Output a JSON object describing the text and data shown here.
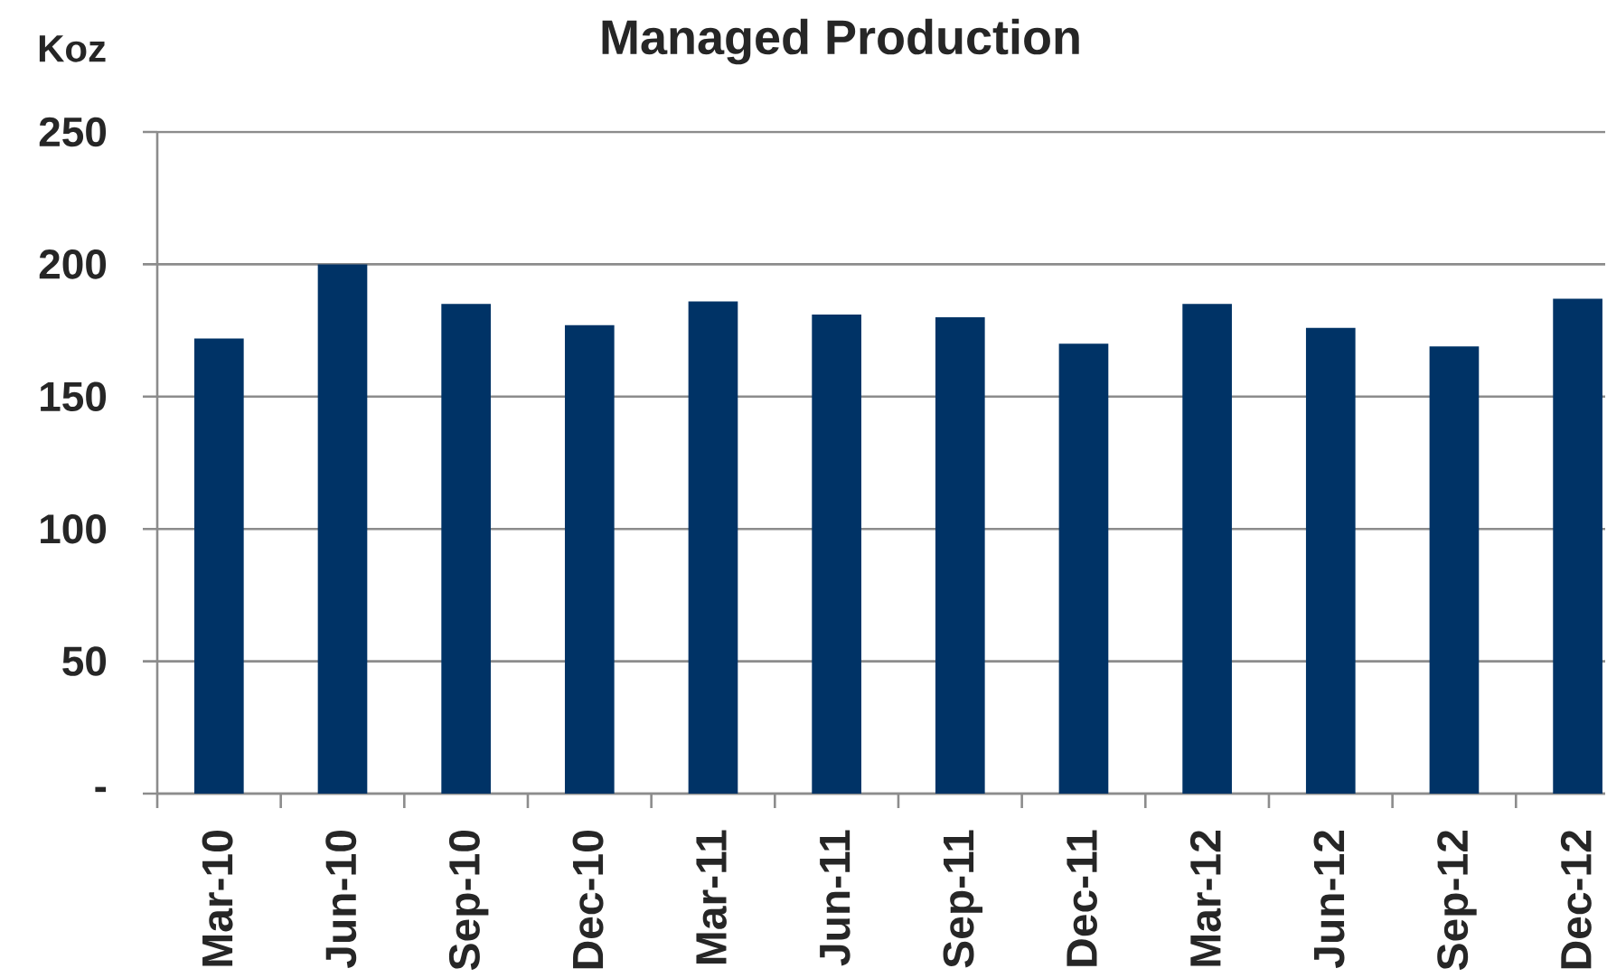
{
  "chart_data": {
    "type": "bar",
    "title": "Managed Production",
    "ylabel": "Koz",
    "categories": [
      "Mar-10",
      "Jun-10",
      "Sep-10",
      "Dec-10",
      "Mar-11",
      "Jun-11",
      "Sep-11",
      "Dec-11",
      "Mar-12",
      "Jun-12",
      "Sep-12",
      "Dec-12"
    ],
    "values": [
      172,
      200,
      185,
      177,
      186,
      181,
      180,
      170,
      185,
      176,
      169,
      187
    ],
    "color": "#003366",
    "ylim": [
      0,
      250
    ],
    "yticks": [
      {
        "value": 0,
        "label": "-"
      },
      50,
      100,
      150,
      200,
      250
    ],
    "grid": "y"
  }
}
